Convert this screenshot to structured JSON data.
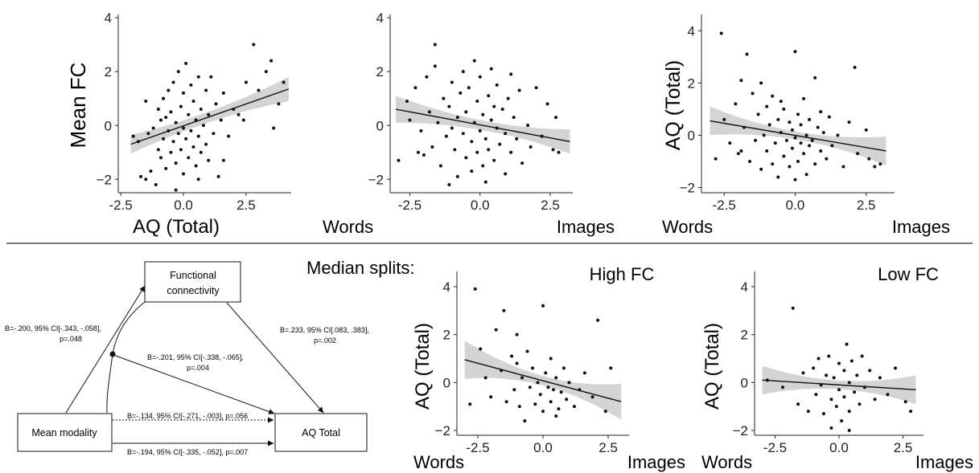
{
  "chart_data": [
    {
      "id": "p1",
      "type": "scatter",
      "ylabel": "Mean FC",
      "xlabel": "AQ (Total)",
      "xlabel_left": "",
      "xlabel_right": "",
      "xlim": [
        -2.6,
        4.3
      ],
      "ylim": [
        -2.5,
        4
      ],
      "xticks": [
        "-2.5",
        "0.0",
        "2.5"
      ],
      "xtick_vals": [
        -2.5,
        0,
        2.5
      ],
      "yticks": [
        "4",
        "2",
        "0",
        "−2"
      ],
      "ytick_vals": [
        4,
        2,
        0,
        -2
      ],
      "fit": {
        "x": [
          -2.1,
          4.2
        ],
        "y": [
          -0.7,
          1.35
        ],
        "band": [
          0.35,
          0.2,
          0.45
        ]
      },
      "points": [
        [
          -2.0,
          -0.4
        ],
        [
          -1.8,
          -0.6
        ],
        [
          -1.7,
          -1.9
        ],
        [
          -1.5,
          -2.0
        ],
        [
          -1.4,
          -0.3
        ],
        [
          -1.3,
          -1.7
        ],
        [
          -1.2,
          -0.1
        ],
        [
          -1.1,
          -2.2
        ],
        [
          -1.0,
          -0.9
        ],
        [
          -1.0,
          0.6
        ],
        [
          -0.9,
          -1.2
        ],
        [
          -0.9,
          0.2
        ],
        [
          -0.8,
          -0.5
        ],
        [
          -0.8,
          1.0
        ],
        [
          -0.7,
          -1.6
        ],
        [
          -0.7,
          0.3
        ],
        [
          -0.6,
          -0.2
        ],
        [
          -0.6,
          1.3
        ],
        [
          -0.5,
          -1.0
        ],
        [
          -0.5,
          0.5
        ],
        [
          -0.4,
          -0.6
        ],
        [
          -0.4,
          1.6
        ],
        [
          -0.3,
          -1.4
        ],
        [
          -0.3,
          0.1
        ],
        [
          -0.2,
          -0.3
        ],
        [
          -0.2,
          2.0
        ],
        [
          -0.1,
          -0.9
        ],
        [
          -0.1,
          0.7
        ],
        [
          0.0,
          -1.8
        ],
        [
          0.0,
          -0.1
        ],
        [
          0.0,
          1.2
        ],
        [
          0.1,
          -0.5
        ],
        [
          0.1,
          2.3
        ],
        [
          0.2,
          -1.2
        ],
        [
          0.2,
          0.4
        ],
        [
          0.3,
          -0.2
        ],
        [
          0.3,
          1.5
        ],
        [
          0.4,
          -0.8
        ],
        [
          0.4,
          0.9
        ],
        [
          0.5,
          -1.5
        ],
        [
          0.5,
          0.2
        ],
        [
          0.6,
          -0.4
        ],
        [
          0.6,
          1.8
        ],
        [
          0.7,
          -1.0
        ],
        [
          0.7,
          0.6
        ],
        [
          0.8,
          0.0
        ],
        [
          0.9,
          -0.7
        ],
        [
          0.9,
          1.3
        ],
        [
          1.0,
          -1.3
        ],
        [
          1.0,
          0.4
        ],
        [
          1.1,
          1.8
        ],
        [
          1.2,
          -0.3
        ],
        [
          1.3,
          0.8
        ],
        [
          1.4,
          -1.9
        ],
        [
          1.5,
          0.2
        ],
        [
          1.6,
          1.2
        ],
        [
          1.8,
          -0.4
        ],
        [
          2.0,
          0.6
        ],
        [
          2.2,
          0.4
        ],
        [
          2.5,
          1.6
        ],
        [
          2.8,
          3.0
        ],
        [
          3.0,
          1.3
        ],
        [
          3.3,
          2.0
        ],
        [
          3.5,
          2.4
        ],
        [
          3.6,
          -0.1
        ],
        [
          3.8,
          0.8
        ],
        [
          4.0,
          1.6
        ],
        [
          -1.5,
          0.9
        ],
        [
          -0.3,
          -2.4
        ],
        [
          0.6,
          -2.0
        ],
        [
          1.6,
          -1.3
        ],
        [
          2.4,
          0.2
        ]
      ]
    },
    {
      "id": "p2",
      "type": "scatter",
      "ylabel": "",
      "xlabel": "",
      "xlabel_left": "Words",
      "xlabel_right": "Images",
      "xlim": [
        -3.2,
        3.3
      ],
      "ylim": [
        -2.5,
        4
      ],
      "xticks": [
        "-2.5",
        "0.0",
        "2.5"
      ],
      "xtick_vals": [
        -2.5,
        0,
        2.5
      ],
      "yticks": [
        "4",
        "2",
        "0",
        "−2"
      ],
      "ytick_vals": [
        4,
        2,
        0,
        -2
      ],
      "fit": {
        "x": [
          -3.0,
          3.2
        ],
        "y": [
          0.6,
          -0.6
        ],
        "band": [
          0.5,
          0.18,
          0.45
        ]
      },
      "points": [
        [
          -2.9,
          -1.3
        ],
        [
          -2.6,
          0.9
        ],
        [
          -2.5,
          0.2
        ],
        [
          -2.3,
          1.4
        ],
        [
          -2.1,
          -0.2
        ],
        [
          -2.0,
          -1.1
        ],
        [
          -1.9,
          1.8
        ],
        [
          -1.8,
          0.5
        ],
        [
          -1.7,
          -0.8
        ],
        [
          -1.6,
          2.2
        ],
        [
          -1.6,
          3.0
        ],
        [
          -1.5,
          0.1
        ],
        [
          -1.4,
          -1.5
        ],
        [
          -1.3,
          1.0
        ],
        [
          -1.2,
          -0.4
        ],
        [
          -1.1,
          -2.2
        ],
        [
          -1.1,
          0.7
        ],
        [
          -1.0,
          1.6
        ],
        [
          -0.9,
          -0.9
        ],
        [
          -0.8,
          0.3
        ],
        [
          -0.8,
          -1.9
        ],
        [
          -0.7,
          1.2
        ],
        [
          -0.6,
          -0.3
        ],
        [
          -0.6,
          2.0
        ],
        [
          -0.5,
          -1.2
        ],
        [
          -0.5,
          0.5
        ],
        [
          -0.4,
          1.4
        ],
        [
          -0.3,
          -0.6
        ],
        [
          -0.3,
          -1.7
        ],
        [
          -0.2,
          0.1
        ],
        [
          -0.2,
          2.4
        ],
        [
          -0.1,
          -1.0
        ],
        [
          -0.1,
          0.9
        ],
        [
          0.0,
          -0.2
        ],
        [
          0.0,
          1.8
        ],
        [
          0.1,
          -1.5
        ],
        [
          0.1,
          0.4
        ],
        [
          0.2,
          -2.1
        ],
        [
          0.2,
          -0.5
        ],
        [
          0.3,
          1.1
        ],
        [
          0.3,
          -0.9
        ],
        [
          0.4,
          0.2
        ],
        [
          0.4,
          2.1
        ],
        [
          0.5,
          -1.3
        ],
        [
          0.6,
          -0.1
        ],
        [
          0.6,
          1.5
        ],
        [
          0.7,
          -0.7
        ],
        [
          0.8,
          0.6
        ],
        [
          0.9,
          -1.8
        ],
        [
          0.9,
          -0.3
        ],
        [
          1.0,
          1.0
        ],
        [
          1.1,
          -1.0
        ],
        [
          1.2,
          0.3
        ],
        [
          1.3,
          -0.5
        ],
        [
          1.4,
          1.3
        ],
        [
          1.5,
          -1.4
        ],
        [
          1.7,
          0.0
        ],
        [
          1.8,
          -0.8
        ],
        [
          2.0,
          1.4
        ],
        [
          2.2,
          -0.4
        ],
        [
          2.4,
          0.8
        ],
        [
          2.6,
          -0.9
        ],
        [
          2.8,
          -1.0
        ],
        [
          2.7,
          0.3
        ],
        [
          -1.0,
          -0.1
        ],
        [
          0.5,
          0.7
        ],
        [
          -2.2,
          -1.0
        ],
        [
          1.1,
          1.9
        ]
      ]
    },
    {
      "id": "p3",
      "type": "scatter",
      "ylabel": "AQ (Total)",
      "xlabel": "",
      "xlabel_left": "Words",
      "xlabel_right": "Images",
      "xlim": [
        -3.3,
        3.5
      ],
      "ylim": [
        -2.2,
        4.5
      ],
      "xticks": [
        "-2.5",
        "0.0",
        "2.5"
      ],
      "xtick_vals": [
        -2.5,
        0,
        2.5
      ],
      "yticks": [
        "4",
        "2",
        "0",
        "−2"
      ],
      "ytick_vals": [
        4,
        2,
        0,
        -2
      ],
      "fit": {
        "x": [
          -3.0,
          3.2
        ],
        "y": [
          0.55,
          -0.6
        ],
        "band": [
          0.55,
          0.15,
          0.55
        ]
      },
      "points": [
        [
          -2.6,
          3.9
        ],
        [
          -2.8,
          -0.9
        ],
        [
          -2.5,
          0.6
        ],
        [
          -2.3,
          -0.3
        ],
        [
          -2.1,
          1.2
        ],
        [
          -2.0,
          -0.7
        ],
        [
          -1.9,
          2.1
        ],
        [
          -1.8,
          0.3
        ],
        [
          -1.7,
          3.1
        ],
        [
          -1.6,
          -1.0
        ],
        [
          -1.5,
          1.6
        ],
        [
          -1.4,
          -0.2
        ],
        [
          -1.3,
          0.8
        ],
        [
          -1.2,
          -1.3
        ],
        [
          -1.1,
          0.0
        ],
        [
          -1.0,
          1.1
        ],
        [
          -1.0,
          -0.6
        ],
        [
          -0.9,
          0.4
        ],
        [
          -0.8,
          -1.1
        ],
        [
          -0.8,
          1.5
        ],
        [
          -0.7,
          -0.3
        ],
        [
          -0.6,
          0.6
        ],
        [
          -0.6,
          -1.6
        ],
        [
          -0.5,
          0.1
        ],
        [
          -0.4,
          1.0
        ],
        [
          -0.4,
          -0.8
        ],
        [
          -0.3,
          -0.2
        ],
        [
          -0.2,
          0.5
        ],
        [
          -0.2,
          -1.2
        ],
        [
          -0.1,
          0.2
        ],
        [
          -0.1,
          -0.5
        ],
        [
          0.0,
          3.2
        ],
        [
          0.0,
          -0.1
        ],
        [
          0.1,
          0.8
        ],
        [
          0.1,
          -1.0
        ],
        [
          0.2,
          -0.3
        ],
        [
          0.2,
          0.4
        ],
        [
          0.3,
          -0.7
        ],
        [
          0.3,
          1.4
        ],
        [
          0.4,
          0.0
        ],
        [
          0.4,
          -1.5
        ],
        [
          0.5,
          -0.4
        ],
        [
          0.5,
          0.6
        ],
        [
          0.6,
          -0.2
        ],
        [
          0.7,
          2.2
        ],
        [
          0.7,
          -1.1
        ],
        [
          0.8,
          0.3
        ],
        [
          0.9,
          -0.6
        ],
        [
          1.0,
          0.1
        ],
        [
          1.1,
          -0.9
        ],
        [
          1.2,
          0.7
        ],
        [
          1.3,
          -0.4
        ],
        [
          1.5,
          0.0
        ],
        [
          1.7,
          -1.2
        ],
        [
          1.9,
          0.5
        ],
        [
          2.1,
          2.6
        ],
        [
          2.2,
          -0.7
        ],
        [
          2.5,
          0.2
        ],
        [
          2.6,
          -0.9
        ],
        [
          2.8,
          -1.2
        ],
        [
          3.0,
          -1.1
        ],
        [
          -1.9,
          -0.6
        ],
        [
          -0.5,
          1.3
        ],
        [
          0.9,
          0.9
        ],
        [
          0.0,
          -1.7
        ],
        [
          -1.2,
          2.0
        ]
      ]
    },
    {
      "id": "p4",
      "type": "scatter",
      "panel_title": "High FC",
      "ylabel": "AQ (Total)",
      "xlabel": "",
      "xlabel_left": "Words",
      "xlabel_right": "Images",
      "xlim": [
        -3.3,
        3.3
      ],
      "ylim": [
        -2.2,
        4.5
      ],
      "xticks": [
        "-2.5",
        "0.0",
        "2.5"
      ],
      "xtick_vals": [
        -2.5,
        0,
        2.5
      ],
      "yticks": [
        "4",
        "2",
        "0",
        "−2"
      ],
      "ytick_vals": [
        4,
        2,
        0,
        -2
      ],
      "fit": {
        "x": [
          -3.0,
          3.0
        ],
        "y": [
          0.95,
          -0.8
        ],
        "band": [
          0.8,
          0.2,
          0.75
        ]
      },
      "points": [
        [
          -2.6,
          3.9
        ],
        [
          -2.8,
          -0.9
        ],
        [
          -2.4,
          1.4
        ],
        [
          -2.2,
          0.2
        ],
        [
          -2.0,
          -0.6
        ],
        [
          -1.8,
          2.2
        ],
        [
          -1.6,
          0.5
        ],
        [
          -1.5,
          3.0
        ],
        [
          -1.4,
          -0.8
        ],
        [
          -1.2,
          1.1
        ],
        [
          -1.1,
          -0.3
        ],
        [
          -1.0,
          0.8
        ],
        [
          -0.9,
          -1.0
        ],
        [
          -0.8,
          0.2
        ],
        [
          -0.7,
          -1.6
        ],
        [
          -0.6,
          1.3
        ],
        [
          -0.5,
          -0.2
        ],
        [
          -0.4,
          0.6
        ],
        [
          -0.3,
          -0.9
        ],
        [
          -0.2,
          0.0
        ],
        [
          -0.1,
          -0.5
        ],
        [
          0.0,
          3.2
        ],
        [
          0.0,
          -1.2
        ],
        [
          0.1,
          0.4
        ],
        [
          0.2,
          -0.2
        ],
        [
          0.3,
          1.0
        ],
        [
          0.3,
          -0.8
        ],
        [
          0.4,
          -0.3
        ],
        [
          0.5,
          0.2
        ],
        [
          0.6,
          -1.1
        ],
        [
          0.7,
          -0.4
        ],
        [
          0.8,
          0.6
        ],
        [
          0.9,
          -0.7
        ],
        [
          1.0,
          0.0
        ],
        [
          1.2,
          -1.0
        ],
        [
          1.4,
          -0.3
        ],
        [
          1.6,
          0.4
        ],
        [
          1.9,
          -0.6
        ],
        [
          2.1,
          2.6
        ],
        [
          2.4,
          -1.2
        ],
        [
          2.6,
          0.6
        ],
        [
          -1.0,
          2.0
        ],
        [
          0.5,
          -1.4
        ]
      ]
    },
    {
      "id": "p5",
      "type": "scatter",
      "panel_title": "Low FC",
      "ylabel": "AQ (Total)",
      "xlabel": "",
      "xlabel_left": "Words",
      "xlabel_right": "Images",
      "xlim": [
        -3.3,
        3.3
      ],
      "ylim": [
        -2.2,
        4.5
      ],
      "xticks": [
        "-2.5",
        "0.0",
        "2.5"
      ],
      "xtick_vals": [
        -2.5,
        0,
        2.5
      ],
      "yticks": [
        "4",
        "2",
        "0",
        "−2"
      ],
      "ytick_vals": [
        4,
        2,
        0,
        -2
      ],
      "fit": {
        "x": [
          -3.0,
          3.0
        ],
        "y": [
          0.1,
          -0.3
        ],
        "band": [
          0.6,
          0.18,
          0.6
        ]
      },
      "points": [
        [
          -2.8,
          0.1
        ],
        [
          -2.2,
          -0.2
        ],
        [
          -1.8,
          3.1
        ],
        [
          -1.6,
          -0.9
        ],
        [
          -1.4,
          0.4
        ],
        [
          -1.2,
          -1.2
        ],
        [
          -1.0,
          0.6
        ],
        [
          -0.9,
          -0.5
        ],
        [
          -0.8,
          1.0
        ],
        [
          -0.7,
          -0.1
        ],
        [
          -0.6,
          -1.3
        ],
        [
          -0.5,
          0.3
        ],
        [
          -0.4,
          1.1
        ],
        [
          -0.3,
          -0.7
        ],
        [
          -0.2,
          0.2
        ],
        [
          -0.1,
          -1.0
        ],
        [
          0.0,
          0.8
        ],
        [
          0.0,
          -0.3
        ],
        [
          0.1,
          -1.6
        ],
        [
          0.2,
          0.5
        ],
        [
          0.2,
          -0.6
        ],
        [
          0.3,
          1.6
        ],
        [
          0.4,
          0.0
        ],
        [
          0.4,
          -1.2
        ],
        [
          0.5,
          0.9
        ],
        [
          0.6,
          -0.4
        ],
        [
          0.7,
          0.3
        ],
        [
          0.8,
          -0.9
        ],
        [
          0.9,
          1.1
        ],
        [
          1.0,
          -0.2
        ],
        [
          1.2,
          0.5
        ],
        [
          1.4,
          -0.7
        ],
        [
          1.6,
          0.2
        ],
        [
          1.9,
          -0.5
        ],
        [
          2.2,
          0.6
        ],
        [
          2.6,
          -0.8
        ],
        [
          2.8,
          -1.2
        ],
        [
          -0.3,
          -1.9
        ],
        [
          0.4,
          -2.0
        ]
      ]
    }
  ],
  "labels": {
    "median_splits": "Median splits:"
  },
  "diagram": {
    "node_fc_line1": "Functional",
    "node_fc_line2": "connectivity",
    "node_mm": "Mean modality",
    "node_aq": "AQ Total",
    "path_a_line1": "B=-.200, 95% CI[-.343, -.058],",
    "path_a_line2": "p=.048",
    "path_b_line1": "B=.233, 95% CI[.083, .383],",
    "path_b_line2": "p=.002",
    "path_mod_line1": "B=-.201, 95% CI[-.338, -.065],",
    "path_mod_line2": "p=.004",
    "path_direct": "B=-.134, 95% CI[-.271, -.003], p=.056",
    "path_total": "B=-.194, 95% CI[-.335, -.052], p=.007"
  }
}
